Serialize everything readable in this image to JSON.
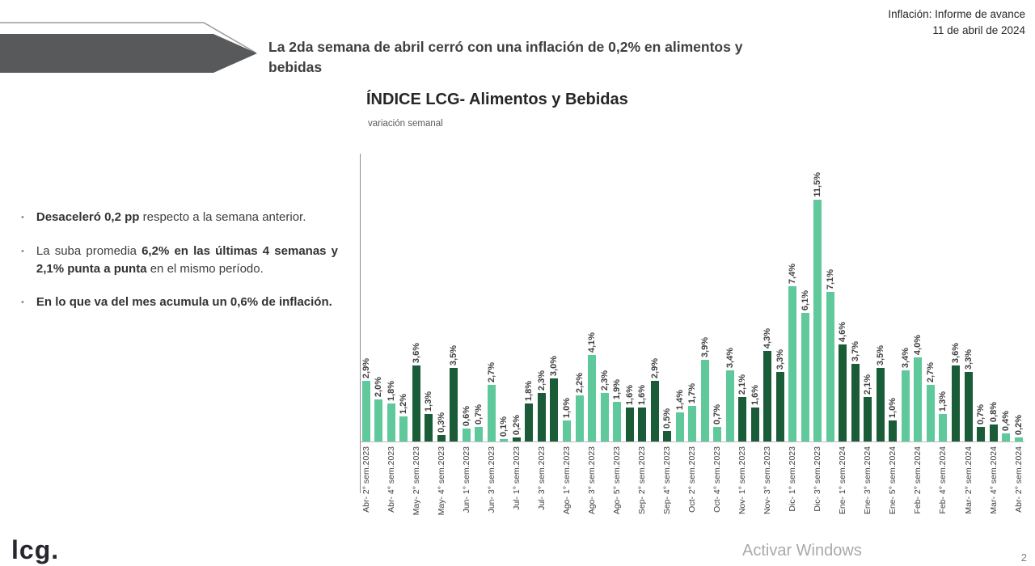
{
  "header": {
    "report_label": "Inflación: Informe de avance",
    "report_date": "11 de abril de 2024",
    "headline": "La 2da semana de abril cerró con una inflación de 0,2% en alimentos y bebidas"
  },
  "bullets": [
    {
      "segments": [
        {
          "text": "Desaceleró 0,2 pp",
          "bold": true
        },
        {
          "text": " respecto a la semana anterior.",
          "bold": false
        }
      ]
    },
    {
      "segments": [
        {
          "text": "La suba promedia ",
          "bold": false
        },
        {
          "text": "6,2% en las últimas 4 semanas y 2,1% punta a punta",
          "bold": true
        },
        {
          "text": " en el mismo período.",
          "bold": false
        }
      ]
    },
    {
      "segments": [
        {
          "text": "En lo que va del mes acumula un 0,6% de inflación.",
          "bold": true
        }
      ]
    }
  ],
  "chart_data": {
    "type": "bar",
    "title": "ÍNDICE LCG- Alimentos y Bebidas",
    "subtitle": "variación semanal",
    "unit": "%",
    "ylim": [
      0,
      12
    ],
    "gridlines": false,
    "value_label_rotation": 90,
    "x_label_rotation": 90,
    "colors": {
      "light": "#5FC99C",
      "dark": "#1A5C38"
    },
    "color_rule": "bars alternate color by month group",
    "bars": [
      {
        "value": 2.9,
        "label": "2,9%",
        "x_label": "Abr- 2° sem.2023",
        "color": "light"
      },
      {
        "value": 2.0,
        "label": "2,0%",
        "x_label": "",
        "color": "light"
      },
      {
        "value": 1.8,
        "label": "1,8%",
        "x_label": "Abr- 4° sem.2023",
        "color": "light"
      },
      {
        "value": 1.2,
        "label": "1,2%",
        "x_label": "",
        "color": "light"
      },
      {
        "value": 3.6,
        "label": "3,6%",
        "x_label": "May- 2° sem.2023",
        "color": "dark"
      },
      {
        "value": 1.3,
        "label": "1,3%",
        "x_label": "",
        "color": "dark"
      },
      {
        "value": 0.3,
        "label": "0,3%",
        "x_label": "May- 4° sem.2023",
        "color": "dark"
      },
      {
        "value": 3.5,
        "label": "3,5%",
        "x_label": "",
        "color": "dark"
      },
      {
        "value": 0.6,
        "label": "0,6%",
        "x_label": "Jun- 1° sem.2023",
        "color": "light"
      },
      {
        "value": 0.7,
        "label": "0,7%",
        "x_label": "",
        "color": "light"
      },
      {
        "value": 2.7,
        "label": "2,7%",
        "x_label": "Jun- 3° sem.2023",
        "color": "light"
      },
      {
        "value": 0.1,
        "label": "0,1%",
        "x_label": "",
        "color": "light"
      },
      {
        "value": 0.2,
        "label": "0,2%",
        "x_label": "Jul- 1° sem.2023",
        "color": "dark"
      },
      {
        "value": 1.8,
        "label": "1,8%",
        "x_label": "",
        "color": "dark"
      },
      {
        "value": 2.3,
        "label": "2,3%",
        "x_label": "Jul- 3° sem.2023",
        "color": "dark"
      },
      {
        "value": 3.0,
        "label": "3,0%",
        "x_label": "",
        "color": "dark"
      },
      {
        "value": 1.0,
        "label": "1,0%",
        "x_label": "Ago- 1° sem.2023",
        "color": "light"
      },
      {
        "value": 2.2,
        "label": "2,2%",
        "x_label": "",
        "color": "light"
      },
      {
        "value": 4.1,
        "label": "4,1%",
        "x_label": "Ago- 3° sem.2023",
        "color": "light"
      },
      {
        "value": 2.3,
        "label": "2,3%",
        "x_label": "",
        "color": "light"
      },
      {
        "value": 1.9,
        "label": "1,9%",
        "x_label": "Ago- 5° sem.2023",
        "color": "light"
      },
      {
        "value": 1.6,
        "label": "1,6%",
        "x_label": "",
        "color": "dark"
      },
      {
        "value": 1.6,
        "label": "1,6%",
        "x_label": "Sep- 2° sem.2023",
        "color": "dark"
      },
      {
        "value": 2.9,
        "label": "2,9%",
        "x_label": "",
        "color": "dark"
      },
      {
        "value": 0.5,
        "label": "0,5%",
        "x_label": "Sep- 4° sem.2023",
        "color": "dark"
      },
      {
        "value": 1.4,
        "label": "1,4%",
        "x_label": "",
        "color": "light"
      },
      {
        "value": 1.7,
        "label": "1,7%",
        "x_label": "Oct- 2° sem.2023",
        "color": "light"
      },
      {
        "value": 3.9,
        "label": "3,9%",
        "x_label": "",
        "color": "light"
      },
      {
        "value": 0.7,
        "label": "0,7%",
        "x_label": "Oct- 4° sem.2023",
        "color": "light"
      },
      {
        "value": 3.4,
        "label": "3,4%",
        "x_label": "",
        "color": "light"
      },
      {
        "value": 2.1,
        "label": "2,1%",
        "x_label": "Nov- 1° sem.2023",
        "color": "dark"
      },
      {
        "value": 1.6,
        "label": "1,6%",
        "x_label": "",
        "color": "dark"
      },
      {
        "value": 4.3,
        "label": "4,3%",
        "x_label": "Nov- 3° sem.2023",
        "color": "dark"
      },
      {
        "value": 3.3,
        "label": "3,3%",
        "x_label": "",
        "color": "dark"
      },
      {
        "value": 7.4,
        "label": "7,4%",
        "x_label": "Dic- 1° sem.2023",
        "color": "light"
      },
      {
        "value": 6.1,
        "label": "6,1%",
        "x_label": "",
        "color": "light"
      },
      {
        "value": 11.5,
        "label": "11,5%",
        "x_label": "Dic- 3° sem.2023",
        "color": "light"
      },
      {
        "value": 7.1,
        "label": "7,1%",
        "x_label": "",
        "color": "light"
      },
      {
        "value": 4.6,
        "label": "4,6%",
        "x_label": "Ene- 1° sem.2024",
        "color": "dark"
      },
      {
        "value": 3.7,
        "label": "3,7%",
        "x_label": "",
        "color": "dark"
      },
      {
        "value": 2.1,
        "label": "2,1%",
        "x_label": "Ene- 3° sem.2024",
        "color": "dark"
      },
      {
        "value": 3.5,
        "label": "3,5%",
        "x_label": "",
        "color": "dark"
      },
      {
        "value": 1.0,
        "label": "1,0%",
        "x_label": "Ene- 5° sem.2024",
        "color": "dark"
      },
      {
        "value": 3.4,
        "label": "3,4%",
        "x_label": "",
        "color": "light"
      },
      {
        "value": 4.0,
        "label": "4,0%",
        "x_label": "Feb- 2° sem.2024",
        "color": "light"
      },
      {
        "value": 2.7,
        "label": "2,7%",
        "x_label": "",
        "color": "light"
      },
      {
        "value": 1.3,
        "label": "1,3%",
        "x_label": "Feb- 4° sem.2024",
        "color": "light"
      },
      {
        "value": 3.6,
        "label": "3,6%",
        "x_label": "",
        "color": "dark"
      },
      {
        "value": 3.3,
        "label": "3,3%",
        "x_label": "Mar- 2° sem.2024",
        "color": "dark"
      },
      {
        "value": 0.7,
        "label": "0,7%",
        "x_label": "",
        "color": "dark"
      },
      {
        "value": 0.8,
        "label": "0,8%",
        "x_label": "Mar- 4° sem.2024",
        "color": "dark"
      },
      {
        "value": 0.4,
        "label": "0,4%",
        "x_label": "",
        "color": "light"
      },
      {
        "value": 0.2,
        "label": "0,2%",
        "x_label": "Abr- 2° sem.2024",
        "color": "light"
      }
    ]
  },
  "footer": {
    "logo": "lcg.",
    "watermark": "Activar Windows",
    "page_number": "2"
  },
  "banner_color": "#58595b"
}
